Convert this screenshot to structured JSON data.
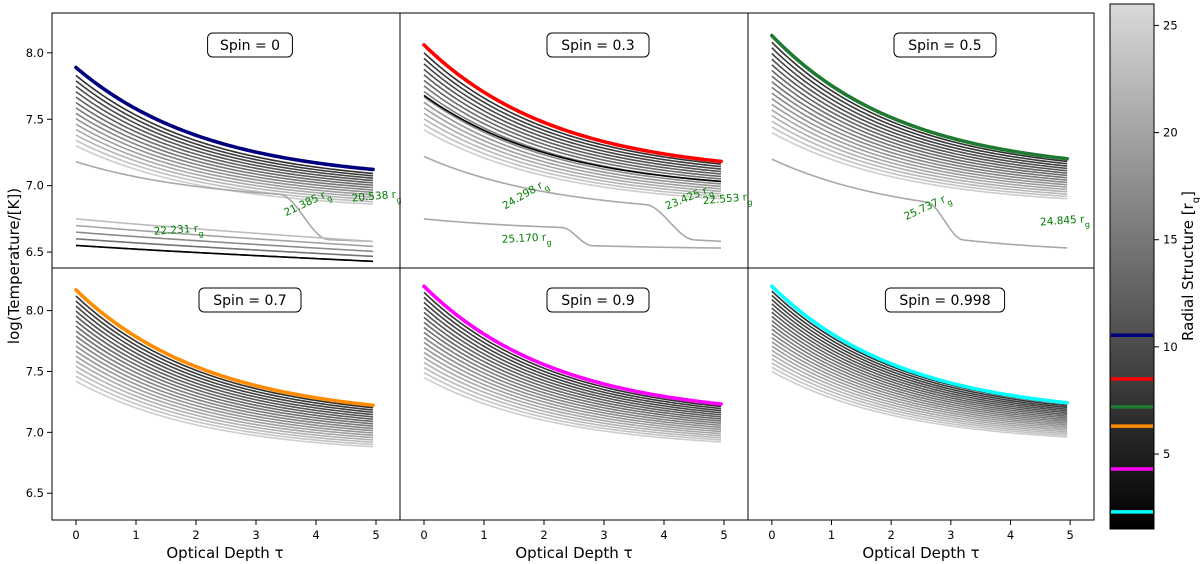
{
  "figure": {
    "ylabel": "log(Temperature/[K])",
    "xlabel": "Optical Depth τ",
    "x_range": [
      -0.4,
      5.4
    ],
    "top_row_y_range": [
      6.38,
      8.3
    ],
    "bottom_row_y_range": [
      6.28,
      8.35
    ],
    "x_ticks": [
      0,
      1,
      2,
      3,
      4,
      5
    ],
    "top_y_ticks": [
      6.5,
      7.0,
      7.5,
      8.0
    ],
    "bottom_y_ticks": [
      6.5,
      7.0,
      7.5,
      8.0
    ]
  },
  "colorbar": {
    "label": "Radial Structure [r",
    "label_sub": "g",
    "label_close": "]",
    "range": [
      1.5,
      26
    ],
    "ticks": [
      5,
      10,
      15,
      20,
      25
    ],
    "markers": [
      {
        "value": 10.54,
        "color": "#00007f"
      },
      {
        "value": 8.5,
        "color": "#ff0000"
      },
      {
        "value": 7.2,
        "color": "#1e7a30"
      },
      {
        "value": 6.3,
        "color": "#ff8c00"
      },
      {
        "value": 4.3,
        "color": "#ff00ff"
      },
      {
        "value": 2.3,
        "color": "#00ffff"
      }
    ]
  },
  "chart_data": [
    {
      "type": "line",
      "row": 0,
      "col": 0,
      "label_prefix": "Spin = ",
      "spin": "0",
      "highlight_color": "#00007f",
      "highlight": {
        "t0": 7.89,
        "t5": 7.12
      },
      "envelope": {
        "top_t0": 7.83,
        "top_t5": 7.09,
        "bottom_t0": 7.3,
        "bottom_t5": 6.86,
        "count": 14
      },
      "kinked_curves": [
        {
          "t0": 7.18,
          "t5": 6.58,
          "kink_start": 3.4,
          "kink_end": 4.2,
          "pre_t5": 6.9
        }
      ],
      "low_curves": {
        "count": 5,
        "top_t0": 6.75,
        "top_t5": 6.58,
        "bottom_t0": 6.55,
        "bottom_t5": 6.43
      },
      "black_curve": {
        "t0": 6.55,
        "t5": 6.43
      },
      "annotations": [
        {
          "text": "22.231 r",
          "sub": "g",
          "x": 1.3,
          "y": 6.63,
          "angle": -4
        },
        {
          "text": "21.385 r",
          "sub": "g",
          "x": 3.5,
          "y": 6.77,
          "angle": -25
        },
        {
          "text": "20.538 r",
          "sub": "g",
          "x": 4.6,
          "y": 6.88,
          "angle": -5
        }
      ]
    },
    {
      "type": "line",
      "row": 0,
      "col": 1,
      "label_prefix": "Spin = ",
      "spin": "0.3",
      "highlight_color": "#ff0000",
      "highlight": {
        "t0": 8.06,
        "t5": 7.18
      },
      "envelope": {
        "top_t0": 8.0,
        "top_t5": 7.16,
        "bottom_t0": 7.42,
        "bottom_t5": 6.9,
        "count": 15
      },
      "kinked_curves": [
        {
          "t0": 7.22,
          "t5": 6.58,
          "kink_start": 3.7,
          "kink_end": 4.5,
          "pre_t5": 6.82
        },
        {
          "t0": 6.75,
          "t5": 6.53,
          "kink_start": 2.3,
          "kink_end": 2.8,
          "pre_t5": 6.66
        }
      ],
      "low_curves": {
        "count": 0,
        "top_t0": 6.75,
        "top_t5": 6.55,
        "bottom_t0": 6.75,
        "bottom_t5": 6.55
      },
      "black_curve": {
        "t0": 7.68,
        "t5": 7.03
      },
      "annotations": [
        {
          "text": "25.170 r",
          "sub": "g",
          "x": 1.3,
          "y": 6.57,
          "angle": -3
        },
        {
          "text": "24.298 r",
          "sub": "g",
          "x": 1.35,
          "y": 6.82,
          "angle": -30
        },
        {
          "text": "23.425 r",
          "sub": "g",
          "x": 4.05,
          "y": 6.82,
          "angle": -22
        },
        {
          "text": "22.553 r",
          "sub": "g",
          "x": 4.65,
          "y": 6.86,
          "angle": -5
        }
      ]
    },
    {
      "type": "line",
      "row": 0,
      "col": 2,
      "label_prefix": "Spin = ",
      "spin": "0.5",
      "highlight_color": "#1e7a30",
      "highlight": {
        "t0": 8.13,
        "t5": 7.2
      },
      "envelope": {
        "top_t0": 8.08,
        "top_t5": 7.18,
        "bottom_t0": 7.4,
        "bottom_t5": 6.9,
        "count": 17
      },
      "kinked_curves": [
        {
          "t0": 7.2,
          "t5": 6.53,
          "kink_start": 2.6,
          "kink_end": 3.2,
          "pre_t5": 6.78
        }
      ],
      "low_curves": {
        "count": 0,
        "top_t0": 6.7,
        "top_t5": 6.53,
        "bottom_t0": 6.7,
        "bottom_t5": 6.53
      },
      "black_curve": null,
      "annotations": [
        {
          "text": "25.737 r",
          "sub": "g",
          "x": 2.25,
          "y": 6.74,
          "angle": -25
        },
        {
          "text": "24.845 r",
          "sub": "g",
          "x": 4.5,
          "y": 6.7,
          "angle": -4
        }
      ]
    },
    {
      "type": "line",
      "row": 1,
      "col": 0,
      "label_prefix": "Spin = ",
      "spin": "0.7",
      "highlight_color": "#ff8c00",
      "highlight": {
        "t0": 8.17,
        "t5": 7.22
      },
      "envelope": {
        "top_t0": 8.12,
        "top_t5": 7.2,
        "bottom_t0": 7.42,
        "bottom_t5": 6.88,
        "count": 18
      },
      "kinked_curves": [],
      "low_curves": {
        "count": 0,
        "top_t0": 0,
        "top_t5": 0,
        "bottom_t0": 0,
        "bottom_t5": 0
      },
      "black_curve": null,
      "annotations": []
    },
    {
      "type": "line",
      "row": 1,
      "col": 1,
      "label_prefix": "Spin = ",
      "spin": "0.9",
      "highlight_color": "#ff00ff",
      "highlight": {
        "t0": 8.2,
        "t5": 7.23
      },
      "envelope": {
        "top_t0": 8.15,
        "top_t5": 7.21,
        "bottom_t0": 7.45,
        "bottom_t5": 6.92,
        "count": 18
      },
      "kinked_curves": [],
      "low_curves": {
        "count": 0,
        "top_t0": 0,
        "top_t5": 0,
        "bottom_t0": 0,
        "bottom_t5": 0
      },
      "black_curve": null,
      "annotations": []
    },
    {
      "type": "line",
      "row": 1,
      "col": 2,
      "label_prefix": "Spin = ",
      "spin": "0.998",
      "highlight_color": "#00ffff",
      "highlight": {
        "t0": 8.2,
        "t5": 7.24
      },
      "envelope": {
        "top_t0": 8.16,
        "top_t5": 7.23,
        "bottom_t0": 7.5,
        "bottom_t5": 6.96,
        "count": 20
      },
      "kinked_curves": [],
      "low_curves": {
        "count": 0,
        "top_t0": 0,
        "top_t5": 0,
        "bottom_t0": 0,
        "bottom_t5": 0
      },
      "black_curve": null,
      "annotations": []
    }
  ]
}
